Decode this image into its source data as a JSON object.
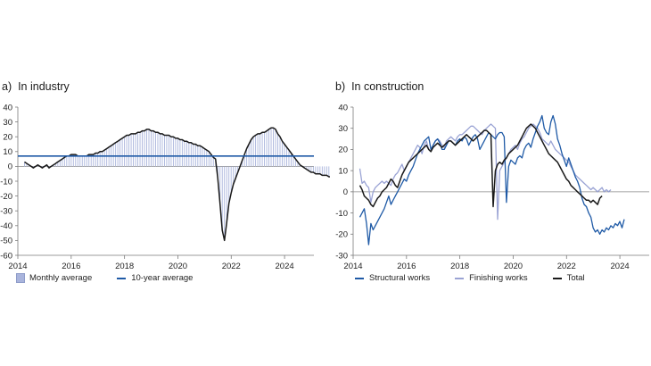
{
  "chart_data": [
    {
      "type": "bar",
      "panel_label": "a)",
      "title": "In industry",
      "ylim": [
        -60,
        40
      ],
      "yticks": [
        40,
        30,
        20,
        10,
        0,
        -10,
        -20,
        -30,
        -40,
        -50,
        -60
      ],
      "xlim": [
        2014,
        2025.1
      ],
      "xticks": [
        2014,
        2016,
        2018,
        2020,
        2022,
        2024
      ],
      "grid": false,
      "legend_position": "bottom",
      "legend": [
        {
          "label": "Monthly average",
          "kind": "bar",
          "color": "#a9b4dc"
        },
        {
          "label": "10-year average",
          "kind": "line",
          "color": "#1f5aa6"
        }
      ],
      "reference_line": {
        "name": "10-year average",
        "value": 7
      },
      "series": [
        {
          "name": "Monthly average",
          "x_start": 2014.25,
          "step": 0.0833,
          "values": [
            3,
            2,
            1,
            0,
            -1,
            0,
            1,
            0,
            -1,
            0,
            1,
            -1,
            0,
            1,
            2,
            3,
            4,
            5,
            6,
            7,
            7,
            8,
            8,
            8,
            7,
            7,
            7,
            7,
            7,
            8,
            8,
            8,
            9,
            9,
            10,
            10,
            11,
            12,
            13,
            14,
            15,
            16,
            17,
            18,
            19,
            20,
            21,
            21,
            22,
            22,
            22,
            23,
            23,
            24,
            24,
            25,
            25,
            24,
            24,
            23,
            23,
            22,
            22,
            21,
            21,
            21,
            20,
            20,
            19,
            19,
            18,
            18,
            17,
            17,
            16,
            16,
            15,
            15,
            14,
            14,
            13,
            12,
            11,
            10,
            8,
            6,
            5,
            -8,
            -25,
            -43,
            -50,
            -38,
            -25,
            -18,
            -12,
            -8,
            -4,
            0,
            4,
            8,
            12,
            15,
            18,
            20,
            21,
            22,
            22,
            23,
            23,
            24,
            25,
            26,
            26,
            25,
            22,
            20,
            17,
            15,
            13,
            11,
            9,
            7,
            5,
            3,
            1,
            0,
            -1,
            -2,
            -3,
            -4,
            -4,
            -5,
            -5,
            -5,
            -6,
            -6,
            -6,
            -7,
            -7,
            -7,
            -8,
            -8,
            -9,
            -9,
            -9,
            -10,
            -10,
            -10,
            -11,
            -11
          ]
        }
      ]
    },
    {
      "type": "line",
      "panel_label": "b)",
      "title": "In construction",
      "ylim": [
        -30,
        40
      ],
      "yticks": [
        40,
        30,
        20,
        10,
        0,
        -10,
        -20,
        -30
      ],
      "xlim": [
        2014,
        2025.1
      ],
      "xticks": [
        2014,
        2016,
        2018,
        2020,
        2022,
        2024
      ],
      "grid": false,
      "legend_position": "bottom",
      "x_start": 2014.25,
      "step": 0.0833,
      "series": [
        {
          "name": "Structural works",
          "color": "#1f5aa6",
          "values": [
            -12,
            -10,
            -8,
            -15,
            -25,
            -15,
            -18,
            -16,
            -14,
            -12,
            -10,
            -8,
            -5,
            -2,
            -6,
            -4,
            -2,
            0,
            2,
            4,
            6,
            5,
            8,
            10,
            12,
            15,
            18,
            20,
            22,
            24,
            25,
            26,
            20,
            22,
            24,
            25,
            23,
            20,
            20,
            22,
            24,
            24,
            23,
            22,
            24,
            25,
            24,
            26,
            25,
            22,
            24,
            26,
            27,
            25,
            20,
            22,
            24,
            26,
            28,
            27,
            26,
            25,
            27,
            28,
            28,
            26,
            -5,
            12,
            15,
            14,
            13,
            16,
            17,
            16,
            20,
            22,
            23,
            21,
            25,
            28,
            31,
            33,
            36,
            30,
            28,
            27,
            33,
            36,
            32,
            25,
            22,
            18,
            15,
            12,
            16,
            13,
            10,
            7,
            5,
            2,
            -3,
            -6,
            -7,
            -10,
            -12,
            -17,
            -19,
            -18,
            -20,
            -18,
            -19,
            -17,
            -18,
            -16,
            -17,
            -15,
            -16,
            -14,
            -17,
            -13
          ]
        },
        {
          "name": "Finishing works",
          "color": "#9aa3d4",
          "values": [
            11,
            4,
            5,
            3,
            2,
            -5,
            0,
            2,
            3,
            4,
            5,
            4,
            5,
            4,
            3,
            6,
            8,
            9,
            11,
            13,
            10,
            12,
            14,
            16,
            18,
            20,
            22,
            21,
            18,
            22,
            24,
            20,
            19,
            22,
            24,
            25,
            24,
            22,
            21,
            24,
            25,
            26,
            25,
            24,
            26,
            27,
            27,
            28,
            29,
            30,
            31,
            31,
            30,
            29,
            28,
            27,
            29,
            30,
            31,
            32,
            31,
            30,
            -13,
            10,
            12,
            14,
            16,
            18,
            20,
            21,
            22,
            20,
            23,
            25,
            26,
            28,
            30,
            31,
            32,
            31,
            30,
            28,
            25,
            24,
            23,
            22,
            24,
            22,
            20,
            19,
            18,
            17,
            16,
            15,
            14,
            12,
            10,
            8,
            7,
            6,
            5,
            4,
            3,
            2,
            1,
            2,
            1,
            0,
            1,
            2,
            0,
            1,
            0,
            1
          ]
        },
        {
          "name": "Total",
          "color": "#1a1a1a",
          "values": [
            3,
            1,
            -2,
            -3,
            -4,
            -6,
            -7,
            -5,
            -3,
            -2,
            0,
            1,
            2,
            4,
            6,
            5,
            3,
            2,
            5,
            8,
            10,
            12,
            14,
            15,
            16,
            17,
            18,
            19,
            20,
            21,
            22,
            20,
            19,
            21,
            22,
            23,
            22,
            21,
            22,
            23,
            24,
            24,
            23,
            22,
            23,
            24,
            25,
            26,
            27,
            26,
            25,
            24,
            25,
            26,
            27,
            28,
            29,
            29,
            28,
            27,
            -7,
            10,
            13,
            14,
            13,
            15,
            16,
            18,
            19,
            20,
            21,
            22,
            24,
            26,
            28,
            30,
            31,
            32,
            31,
            30,
            28,
            26,
            24,
            22,
            20,
            18,
            17,
            16,
            15,
            14,
            12,
            10,
            8,
            6,
            5,
            3,
            2,
            1,
            0,
            -1,
            -2,
            -3,
            -4,
            -4,
            -5,
            -4,
            -5,
            -6,
            -3,
            -2
          ]
        }
      ]
    }
  ]
}
